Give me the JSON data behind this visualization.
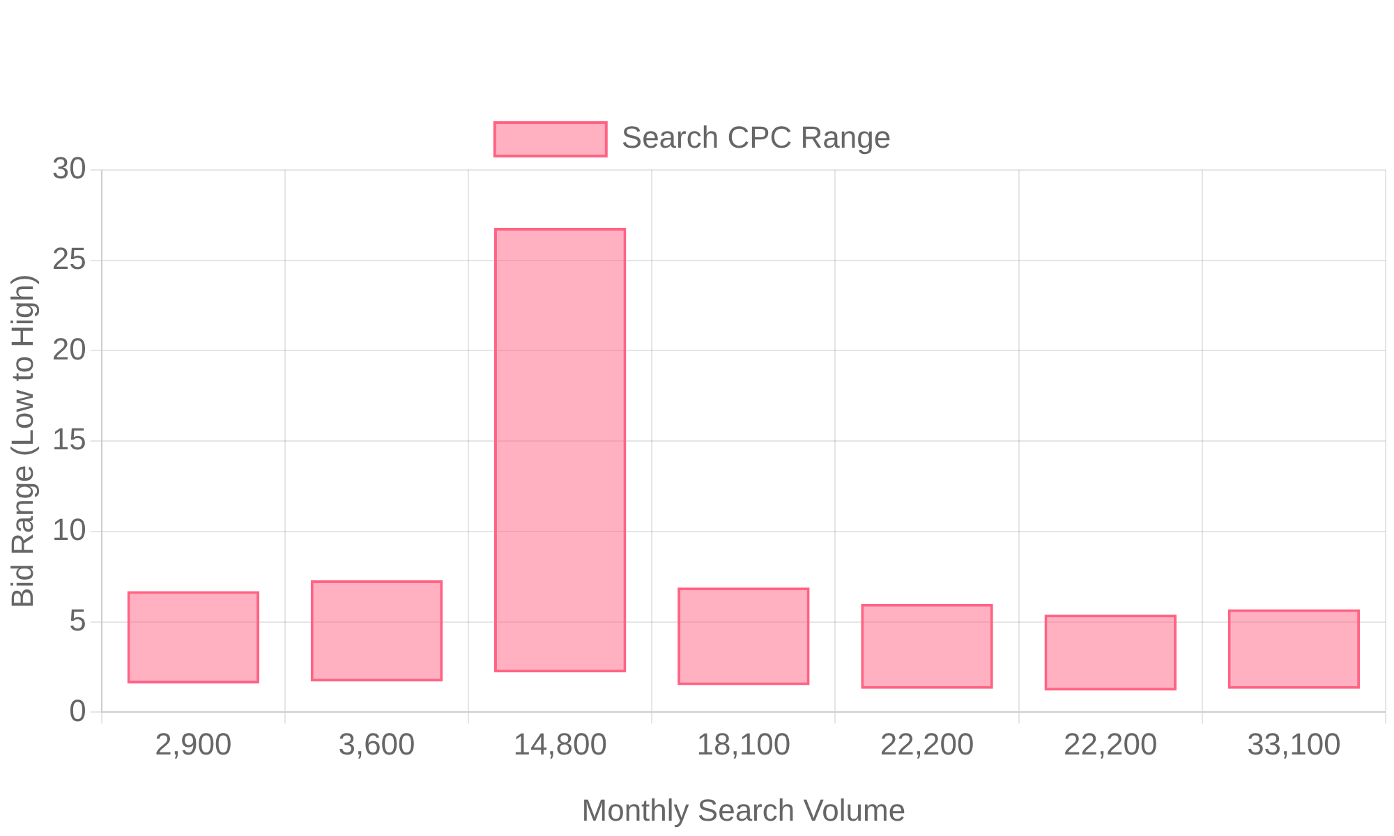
{
  "chart_data": {
    "type": "bar",
    "xlabel": "Monthly Search Volume",
    "ylabel": "Bid Range (Low to High)",
    "categories": [
      "2,900",
      "3,600",
      "14,800",
      "18,100",
      "22,200",
      "22,200",
      "33,100"
    ],
    "series": [
      {
        "name": "Search CPC Range",
        "color": "#ff6384",
        "values": [
          5.1,
          5.6,
          24.6,
          5.4,
          4.7,
          4.2,
          4.4
        ],
        "base": [
          1.6,
          1.7,
          2.2,
          1.5,
          1.3,
          1.2,
          1.3
        ]
      }
    ],
    "ylim": [
      0,
      30
    ],
    "yticks": [
      0,
      5,
      10,
      15,
      20,
      25,
      30
    ],
    "grid": true,
    "legend": "top"
  }
}
